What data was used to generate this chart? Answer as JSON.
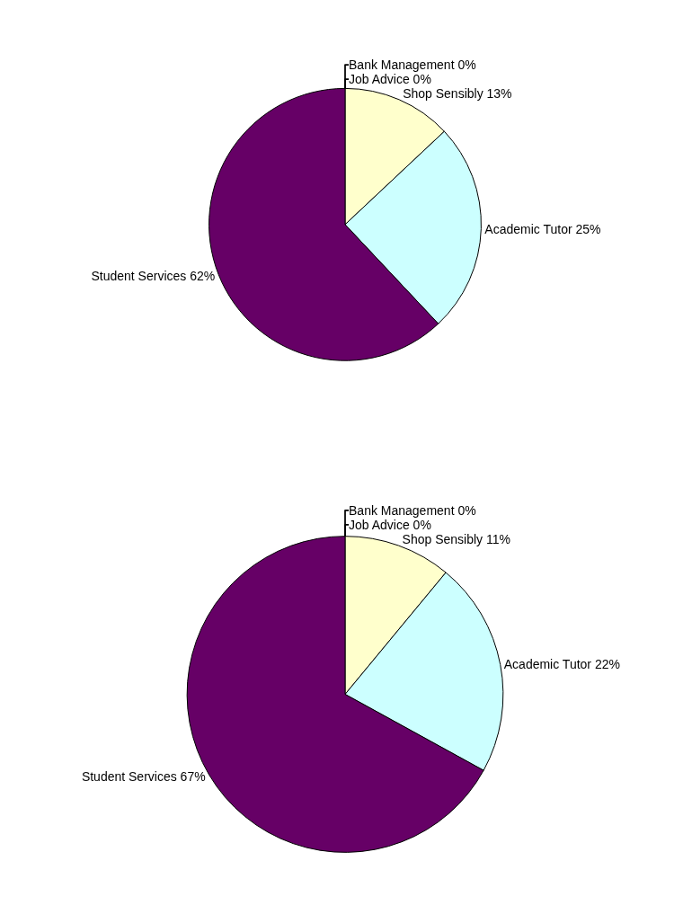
{
  "chart_data": [
    {
      "type": "pie",
      "categories": [
        "Job Advice",
        "Bank Management",
        "Shop Sensibly",
        "Academic Tutor",
        "Student Services"
      ],
      "values": [
        0,
        0,
        13,
        25,
        62
      ],
      "value_labels": [
        "0%",
        "0%",
        "13%",
        "25%",
        "62%"
      ],
      "colors": [
        "#000080",
        "#993366",
        "#ffffcc",
        "#ccffff",
        "#660066"
      ]
    },
    {
      "type": "pie",
      "categories": [
        "Job Advice",
        "Bank Management",
        "Shop Sensibly",
        "Academic Tutor",
        "Student Services"
      ],
      "values": [
        0,
        0,
        11,
        22,
        67
      ],
      "value_labels": [
        "0%",
        "0%",
        "11%",
        "22%",
        "67%"
      ],
      "colors": [
        "#000080",
        "#993366",
        "#ffffcc",
        "#ccffff",
        "#660066"
      ]
    }
  ]
}
